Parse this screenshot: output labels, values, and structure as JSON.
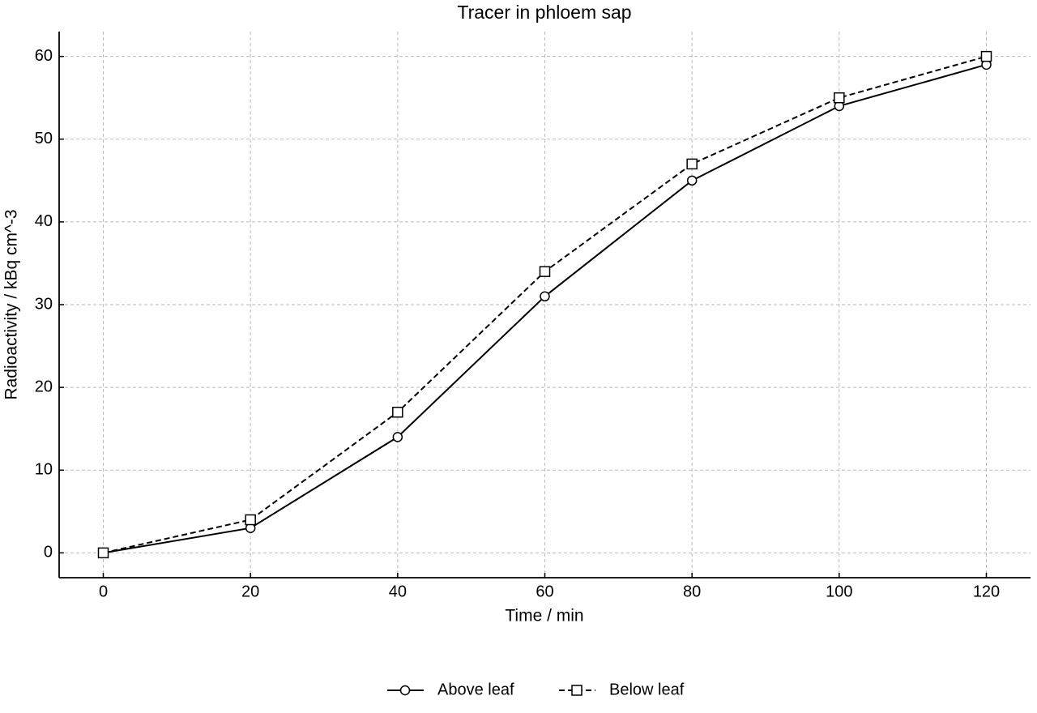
{
  "chart_data": {
    "type": "line",
    "title": "Tracer in phloem sap",
    "x_label": "Time / min",
    "y_label": "Radioactivity / kBq cm^-3",
    "x": [
      0,
      20,
      40,
      60,
      80,
      100,
      120
    ],
    "series": [
      {
        "name": "Above leaf",
        "color": "#000000",
        "dash": "solid",
        "marker": "circle",
        "values": [
          0,
          3,
          14,
          31,
          45,
          54,
          59
        ]
      },
      {
        "name": "Below leaf",
        "color": "#000000",
        "dash": "dashed",
        "marker": "square",
        "values": [
          0,
          4,
          17,
          34,
          47,
          55,
          60
        ]
      }
    ],
    "xlim": [
      -6,
      126
    ],
    "ylim": [
      -3,
      63
    ],
    "xticks": [
      0,
      20,
      40,
      60,
      80,
      100,
      120
    ],
    "yticks": [
      0,
      10,
      20,
      30,
      40,
      50,
      60
    ],
    "grid": true,
    "legend": "bottom"
  }
}
